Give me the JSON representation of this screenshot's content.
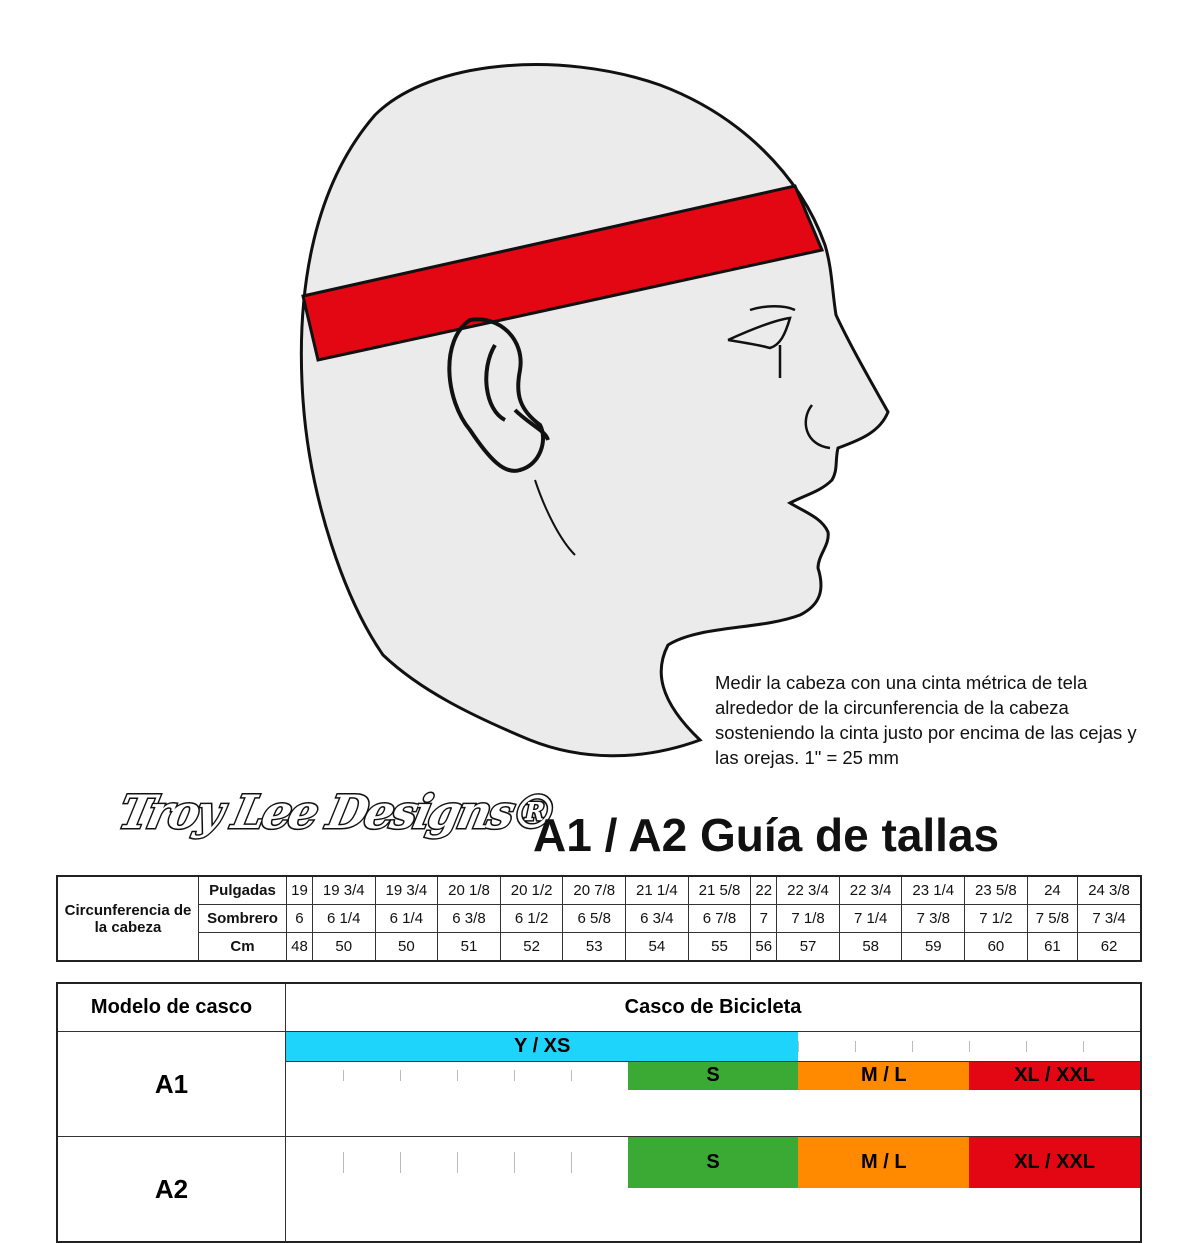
{
  "instructions": "Medir la cabeza con una cinta métrica de tela alrededor de la circunferencia de la cabeza sosteniendo la cinta justo por encima de las cejas y las orejas. 1\" = 25 mm",
  "logo_text": "Troy Lee Designs",
  "title": "A1 / A2 Guía de tallas",
  "band_color": "#e30613",
  "circumference": {
    "label": "Circunferencia de la cabeza",
    "rows": [
      {
        "label": "Pulgadas",
        "values": [
          "19",
          "19 3/4",
          "19 3/4",
          "20 1/8",
          "20 1/2",
          "20 7/8",
          "21 1/4",
          "21 5/8",
          "22",
          "22 3/4",
          "22 3/4",
          "23 1/4",
          "23 5/8",
          "24",
          "24 3/8"
        ]
      },
      {
        "label": "Sombrero",
        "values": [
          "6",
          "6 1/4",
          "6 1/4",
          "6 3/8",
          "6 1/2",
          "6 5/8",
          "6 3/4",
          "6 7/8",
          "7",
          "7 1/8",
          "7 1/4",
          "7 3/8",
          "7 1/2",
          "7 5/8",
          "7 3/4"
        ]
      },
      {
        "label": "Cm",
        "values": [
          "48",
          "50",
          "50",
          "51",
          "52",
          "53",
          "54",
          "55",
          "56",
          "57",
          "58",
          "59",
          "60",
          "61",
          "62"
        ]
      }
    ]
  },
  "models": {
    "header_model": "Modelo de casco",
    "header_type": "Casco de Bicicleta",
    "rows": [
      {
        "name": "A1",
        "lines": [
          [
            {
              "label": "Y / XS",
              "from_cm": "48",
              "to_cm": "56",
              "color": "#1fd4fb"
            }
          ],
          [
            {
              "label": "S",
              "from_cm": "54",
              "to_cm": "56",
              "color": "#3aaa35"
            },
            {
              "label": "M / L",
              "from_cm": "57",
              "to_cm": "59",
              "color": "#ff8a00"
            },
            {
              "label": "XL / XXL",
              "from_cm": "60",
              "to_cm": "62",
              "color": "#e30613"
            }
          ]
        ]
      },
      {
        "name": "A2",
        "lines": [
          [
            {
              "label": "S",
              "from_cm": "54",
              "to_cm": "56",
              "color": "#3aaa35"
            },
            {
              "label": "M / L",
              "from_cm": "57",
              "to_cm": "59",
              "color": "#ff8a00"
            },
            {
              "label": "XL / XXL",
              "from_cm": "60",
              "to_cm": "62",
              "color": "#e30613"
            }
          ]
        ]
      }
    ]
  }
}
